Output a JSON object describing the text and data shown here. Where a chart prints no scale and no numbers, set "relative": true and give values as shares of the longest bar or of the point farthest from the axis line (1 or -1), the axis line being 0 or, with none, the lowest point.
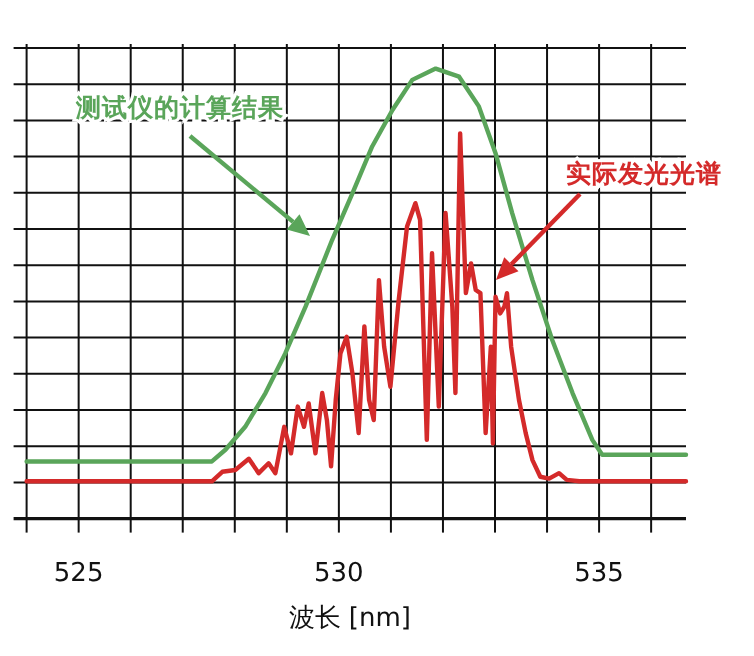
{
  "chart_data": {
    "type": "line",
    "relative": true,
    "xlabel": "波长 [nm]",
    "xlim": [
      523.75,
      536.67
    ],
    "xticks": [
      {
        "value": 524,
        "label": null
      },
      525,
      {
        "value": 526,
        "label": null
      },
      {
        "value": 527,
        "label": null
      },
      {
        "value": 528,
        "label": null
      },
      {
        "value": 529,
        "label": null
      },
      530,
      {
        "value": 531,
        "label": null
      },
      {
        "value": 532,
        "label": null
      },
      {
        "value": 533,
        "label": null
      },
      {
        "value": 534,
        "label": null
      },
      535,
      {
        "value": 536,
        "label": null
      }
    ],
    "grid": true,
    "legend": false,
    "series": [
      {
        "name": "测试仪的计算结果",
        "color": "#5aa55a",
        "x": [
          524,
          527.56,
          527.82,
          528.2,
          528.59,
          528.97,
          529.36,
          529.87,
          530.26,
          530.64,
          531.03,
          531.41,
          531.86,
          532.31,
          532.69,
          533.01,
          533.33,
          533.72,
          534.1,
          534.49,
          534.87,
          535.06,
          536.67
        ],
        "values": [
          0.127,
          0.127,
          0.153,
          0.204,
          0.279,
          0.367,
          0.471,
          0.619,
          0.723,
          0.827,
          0.908,
          0.975,
          1.0,
          0.982,
          0.916,
          0.812,
          0.679,
          0.53,
          0.397,
          0.279,
          0.175,
          0.142,
          0.142
        ]
      },
      {
        "name": "实际发光光谱",
        "color": "#d42a2a",
        "x": [
          524,
          527.56,
          527.76,
          528.01,
          528.27,
          528.46,
          528.65,
          528.78,
          528.95,
          529.08,
          529.21,
          529.33,
          529.42,
          529.55,
          529.68,
          529.77,
          529.85,
          529.94,
          530.03,
          530.15,
          530.26,
          530.38,
          530.49,
          530.58,
          530.67,
          530.77,
          530.87,
          530.99,
          531.15,
          531.31,
          531.47,
          531.56,
          531.69,
          531.79,
          531.92,
          532.05,
          532.18,
          532.24,
          532.33,
          532.44,
          532.54,
          532.63,
          532.72,
          532.82,
          532.92,
          532.96,
          533.01,
          533.1,
          533.18,
          533.23,
          533.31,
          533.46,
          533.59,
          533.72,
          533.87,
          534.04,
          534.23,
          534.38,
          534.62,
          536.67
        ],
        "values": [
          0.083,
          0.083,
          0.104,
          0.108,
          0.133,
          0.101,
          0.123,
          0.101,
          0.204,
          0.145,
          0.249,
          0.204,
          0.256,
          0.145,
          0.279,
          0.219,
          0.116,
          0.264,
          0.367,
          0.404,
          0.323,
          0.19,
          0.427,
          0.264,
          0.219,
          0.53,
          0.382,
          0.293,
          0.486,
          0.649,
          0.701,
          0.664,
          0.175,
          0.59,
          0.249,
          0.679,
          0.471,
          0.279,
          0.856,
          0.501,
          0.567,
          0.508,
          0.501,
          0.19,
          0.382,
          0.167,
          0.493,
          0.456,
          0.471,
          0.501,
          0.382,
          0.264,
          0.19,
          0.13,
          0.093,
          0.089,
          0.101,
          0.086,
          0.083,
          0.083
        ]
      }
    ]
  }
}
